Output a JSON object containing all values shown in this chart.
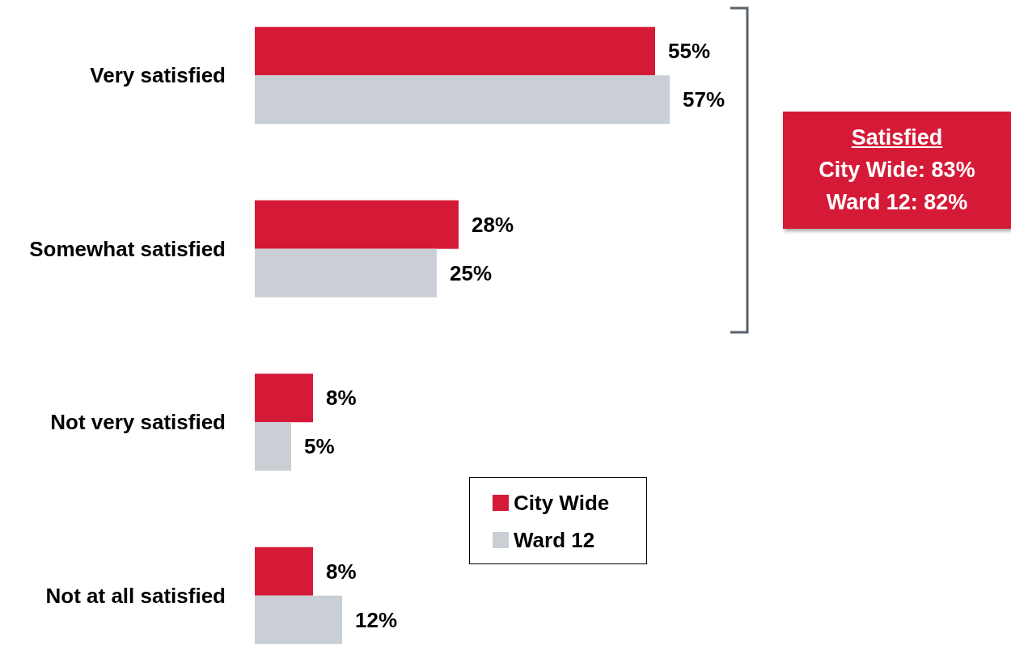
{
  "chart_data": {
    "type": "bar",
    "orientation": "horizontal",
    "categories": [
      "Very satisfied",
      "Somewhat satisfied",
      "Not very satisfied",
      "Not at all satisfied"
    ],
    "series": [
      {
        "name": "City Wide",
        "color": "#d51a37",
        "values": [
          55,
          28,
          8,
          8
        ],
        "value_labels": [
          "55%",
          "28%",
          "8%",
          "8%"
        ]
      },
      {
        "name": "Ward 12",
        "color": "#c9cfd4",
        "values": [
          57,
          25,
          5,
          12
        ],
        "value_labels": [
          "57%",
          "25%",
          "5%",
          "12%"
        ]
      }
    ],
    "legend": "bottom",
    "annotations": [
      "Satisfied",
      "City Wide: 83%",
      "Ward 12: 82%"
    ]
  }
}
